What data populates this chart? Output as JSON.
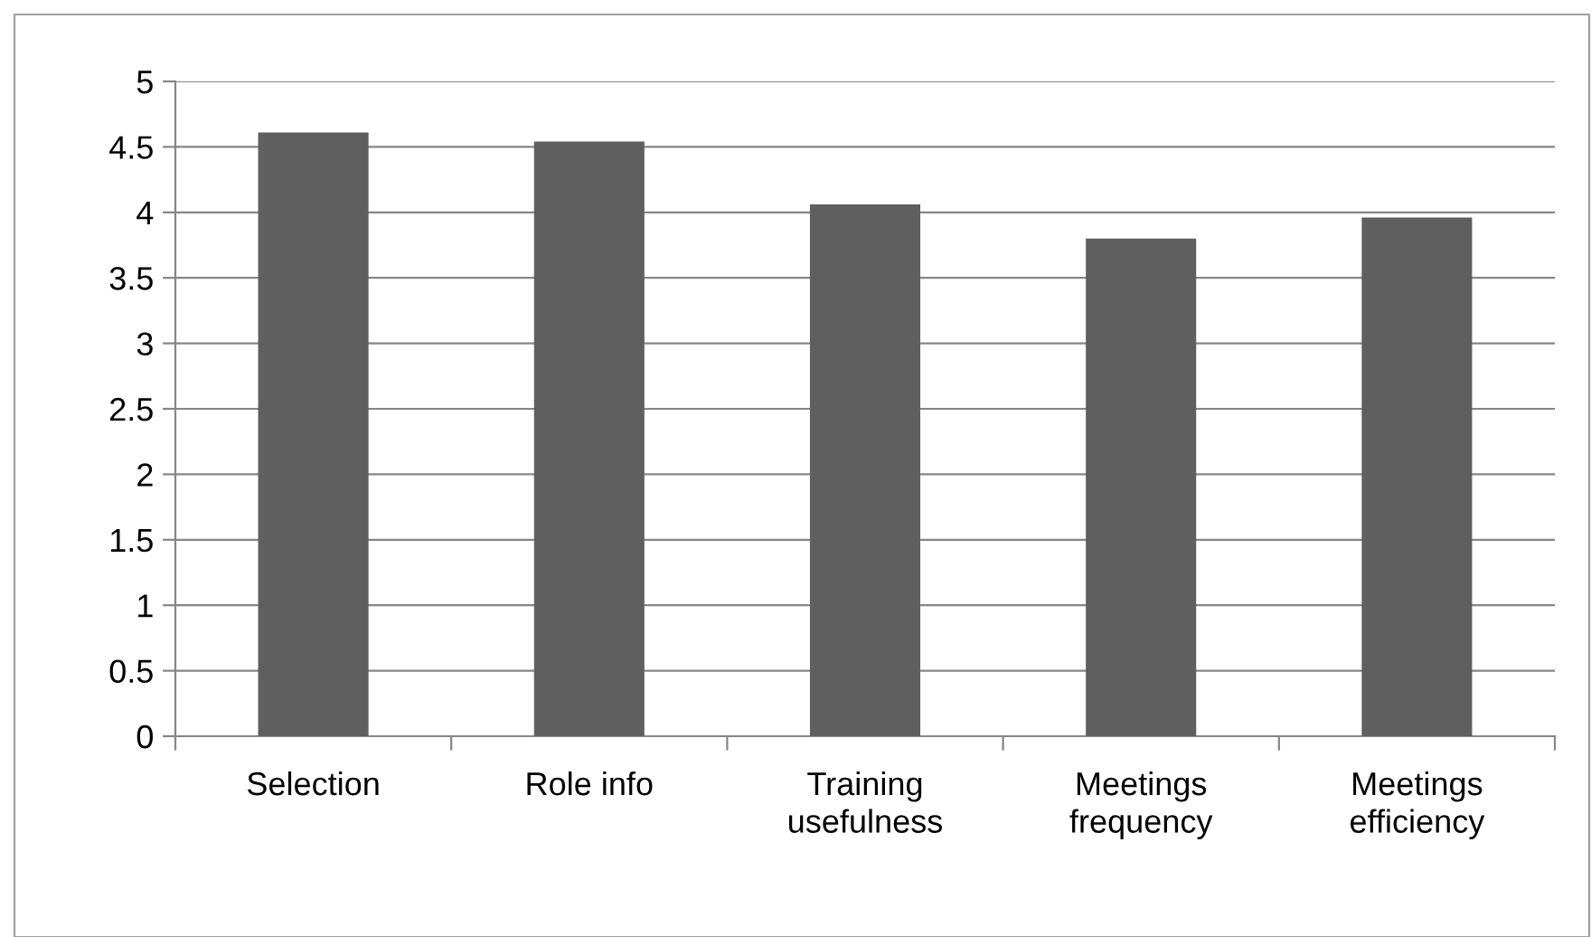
{
  "chart_data": {
    "type": "bar",
    "categories": [
      "Selection",
      "Role info",
      "Training\nusefulness",
      "Meetings\nfrequency",
      "Meetings\nefficiency"
    ],
    "values": [
      4.61,
      4.54,
      4.06,
      3.8,
      3.96
    ],
    "color": "#5f5f5f",
    "ylim": [
      0,
      5
    ],
    "yticks": [
      0,
      0.5,
      1,
      1.5,
      2,
      2.5,
      3,
      3.5,
      4,
      4.5,
      5
    ],
    "grid": "y",
    "legend": false
  }
}
